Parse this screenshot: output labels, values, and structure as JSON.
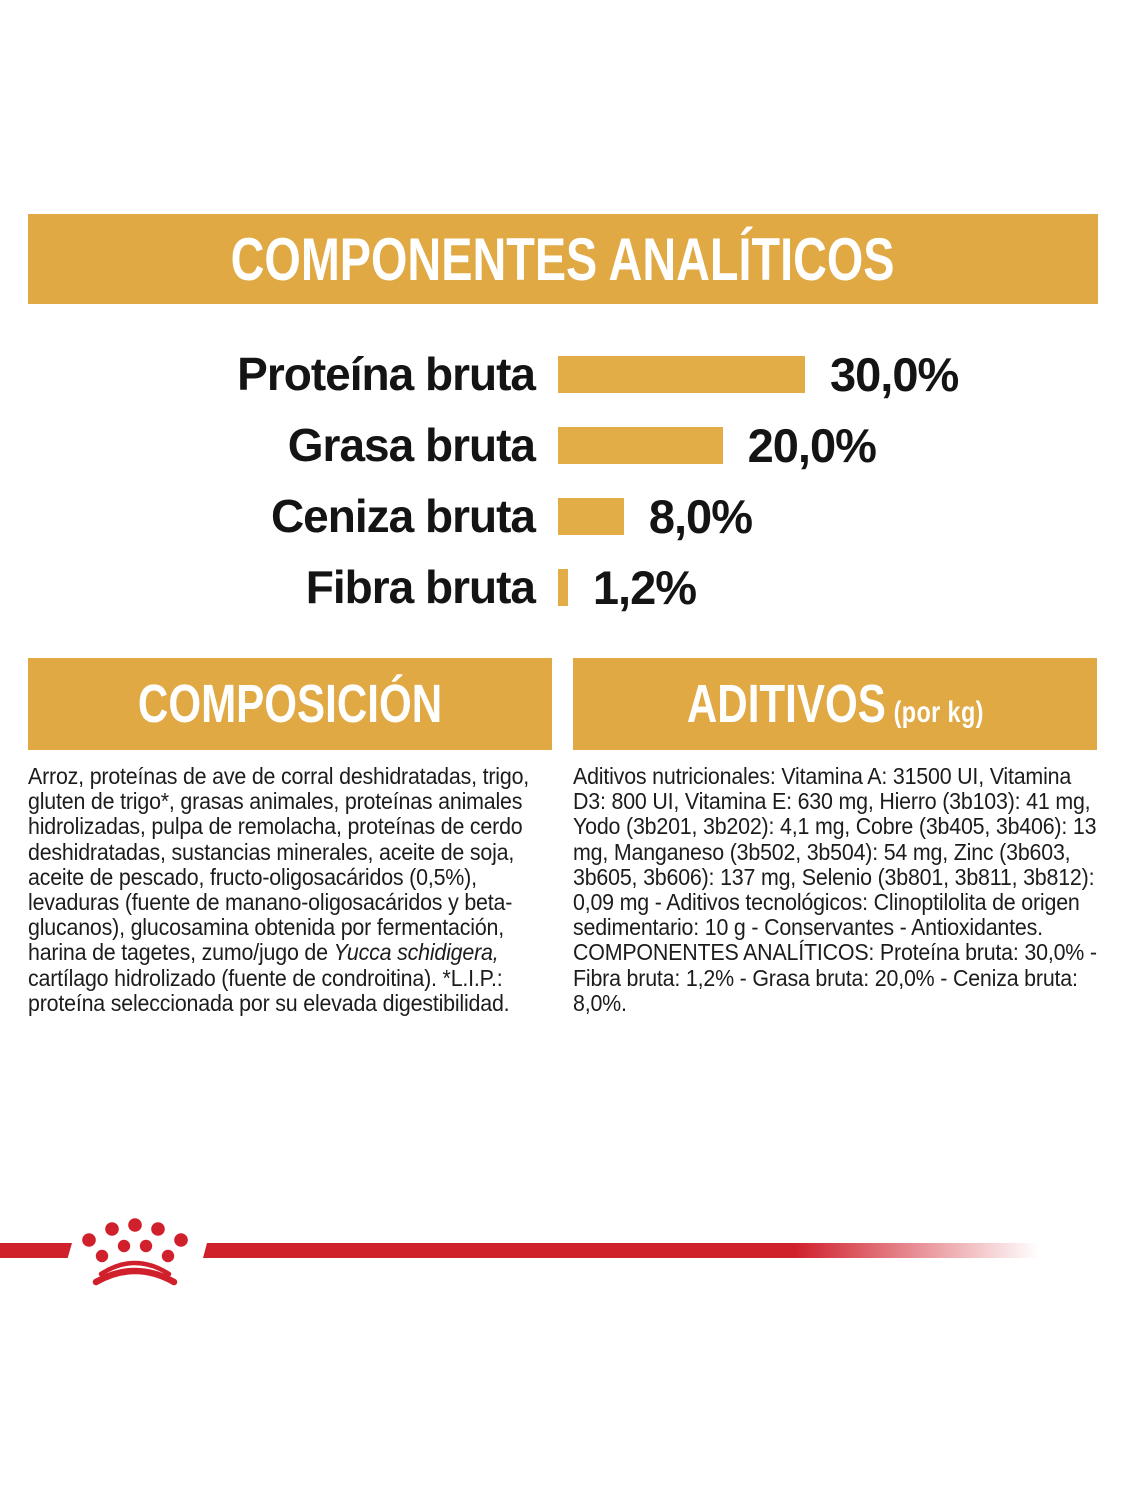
{
  "colors": {
    "gold": "#E0A944",
    "bar_gold": "#E2AC47",
    "red": "#D0202C",
    "text": "#1C1C1C",
    "banner_text": "#FFFFFF"
  },
  "analytical_banner": {
    "title": "COMPONENTES ANALÍTICOS"
  },
  "chart_data": {
    "type": "bar",
    "orientation": "horizontal",
    "title": "COMPONENTES ANALÍTICOS",
    "categories": [
      "Proteína bruta",
      "Grasa bruta",
      "Ceniza bruta",
      "Fibra bruta"
    ],
    "values": [
      30.0,
      20.0,
      8.0,
      1.2
    ],
    "value_labels": [
      "30,0%",
      "20,0%",
      "8,0%",
      "1,2%"
    ],
    "unit": "%",
    "xlim": [
      0,
      30
    ],
    "grid": false,
    "legend": false,
    "bar_color": "#E2AC47"
  },
  "composition": {
    "title": "COMPOSICIÓN",
    "text_before_italic": "Arroz, proteínas de ave de corral deshidratadas, trigo, gluten de trigo*, grasas animales, proteínas animales hidrolizadas, pulpa de remolacha, proteínas de cerdo deshidratadas, sustancias minerales, aceite de soja, aceite de pescado, fructo-oligosacáridos (0,5%), levaduras (fuente de manano-oligosacáridos y beta-glucanos), glucosamina obtenida por fermentación, harina de tagetes, zumo/jugo de ",
    "italic_text": "Yucca schidigera,",
    "text_after_italic": " cartílago hidrolizado (fuente de condroitina). *L.I.P.: proteína seleccionada por su elevada digestibilidad."
  },
  "additives": {
    "title": "ADITIVOS",
    "title_suffix": "(por kg)",
    "paragraph1": "Aditivos nutricionales: Vitamina A: 31500 UI, Vitamina D3: 800 UI, Vitamina E: 630 mg, Hierro (3b103): 41 mg, Yodo (3b201, 3b202): 4,1 mg, Cobre (3b405, 3b406): 13 mg, Manganeso (3b502, 3b504): 54 mg, Zinc (3b603, 3b605, 3b606): 137 mg, Selenio (3b801, 3b811, 3b812): 0,09 mg - Aditivos tecnológicos: Clinoptilolita de origen sedimentario: 10 g - Conservantes - Antioxidantes.",
    "paragraph2": "COMPONENTES ANALÍTICOS: Proteína bruta: 30,0% - Fibra bruta: 1,2% - Grasa bruta: 20,0% - Ceniza bruta: 8,0%."
  },
  "footer": {
    "brand_icon": "royal-canin-crown"
  }
}
